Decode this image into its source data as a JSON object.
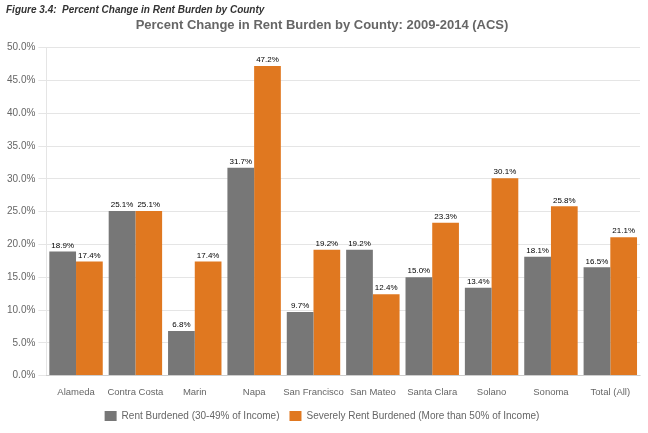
{
  "chart_data": {
    "type": "bar",
    "title": "Percent Change in Rent Burden by County: 2009-2014 (ACS)",
    "subtitle": "Figure 3.4:  Percent Change in Rent Burden by County",
    "categories": [
      "Alameda",
      "Contra Costa",
      "Marin",
      "Napa",
      "San Francisco",
      "San Mateo",
      "Santa Clara",
      "Solano",
      "Sonoma",
      "Total (All)"
    ],
    "series": [
      {
        "name": "Rent Burdened (30-49% of Income)",
        "color": "#777777",
        "values": [
          18.9,
          25.1,
          6.8,
          31.7,
          9.7,
          19.2,
          15.0,
          13.4,
          18.1,
          16.5
        ],
        "value_labels": [
          "18.9%",
          "25.1%",
          "6.8%",
          "31.7%",
          "9.7%",
          "19.2%",
          "15.0%",
          "13.4%",
          "18.1%",
          "16.5%"
        ]
      },
      {
        "name": "Severely Rent Burdened (More than 50% of Income)",
        "color": "#e07820",
        "values": [
          17.4,
          25.1,
          17.4,
          47.2,
          19.2,
          12.4,
          23.3,
          30.1,
          25.8,
          21.1
        ],
        "value_labels": [
          "17.4%",
          "25.1%",
          "17.4%",
          "47.2%",
          "19.2%",
          "12.4%",
          "23.3%",
          "30.1%",
          "25.8%",
          "21.1%"
        ]
      }
    ],
    "ylim": [
      0,
      50
    ],
    "yticks": [
      {
        "value": 0,
        "label": "0.0%"
      },
      {
        "value": 5,
        "label": "5.0%"
      },
      {
        "value": 10,
        "label": "10.0%"
      },
      {
        "value": 15,
        "label": "15.0%"
      },
      {
        "value": 20,
        "label": "20.0%"
      },
      {
        "value": 25,
        "label": "25.0%"
      },
      {
        "value": 30,
        "label": "30.0%"
      },
      {
        "value": 35,
        "label": "35.0%"
      },
      {
        "value": 40,
        "label": "40.0%"
      },
      {
        "value": 45,
        "label": "45.0%"
      },
      {
        "value": 50,
        "label": "50.0%"
      }
    ],
    "grid": true,
    "legend": "bottom",
    "data_labels": true
  }
}
